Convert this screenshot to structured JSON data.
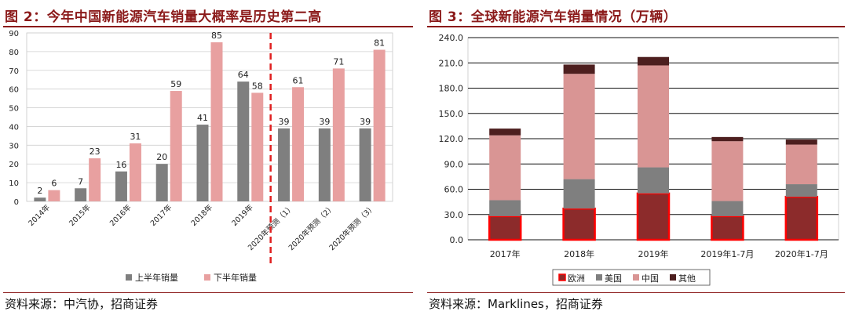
{
  "fig2": {
    "title": "图 2：今年中国新能源汽车销量大概率是历史第二高",
    "source": "资料来源：中汽协，招商证券",
    "chart_data": {
      "type": "bar",
      "categories": [
        "2014年",
        "2015年",
        "2016年",
        "2017年",
        "2018年",
        "2019年",
        "2020年预测（1）",
        "2020年预测（2）",
        "2020年预测（3）"
      ],
      "series": [
        {
          "name": "上半年销量",
          "values": [
            2,
            7,
            16,
            20,
            41,
            64,
            39,
            39,
            39
          ],
          "color": "#7f7f7f"
        },
        {
          "name": "下半年销量",
          "values": [
            6,
            23,
            31,
            59,
            85,
            58,
            61,
            71,
            81
          ],
          "color": "#e8a0a0"
        }
      ],
      "ylim": [
        0,
        90
      ],
      "yticks": [
        0,
        10,
        20,
        30,
        40,
        50,
        60,
        70,
        80,
        90
      ],
      "grid": true,
      "legend": "bottom",
      "forecast_divider_after_index": 5,
      "divider_color": "#e02020"
    }
  },
  "fig3": {
    "title": "图 3：全球新能源汽车销量情况（万辆）",
    "source": "资料来源：Marklines，招商证券",
    "chart_data": {
      "type": "bar",
      "stacked": true,
      "categories": [
        "2017年",
        "2018年",
        "2019年",
        "2019年1-7月",
        "2020年1-7月"
      ],
      "series": [
        {
          "name": "欧洲",
          "values": [
            28,
            37,
            55,
            28,
            51
          ],
          "color": "#8c2b2b",
          "outline": "#ff0000"
        },
        {
          "name": "美国",
          "values": [
            19,
            35,
            31,
            18,
            15
          ],
          "color": "#7f7f7f"
        },
        {
          "name": "中国",
          "values": [
            77,
            125,
            121,
            71,
            47
          ],
          "color": "#d99594"
        },
        {
          "name": "其他",
          "values": [
            8,
            11,
            10,
            5,
            6
          ],
          "color": "#4d1f1f"
        }
      ],
      "ylim": [
        0,
        240
      ],
      "yticks": [
        "0.0",
        "30.0",
        "60.0",
        "90.0",
        "120.0",
        "150.0",
        "180.0",
        "210.0",
        "240.0"
      ],
      "grid": true,
      "legend": "bottom"
    }
  }
}
